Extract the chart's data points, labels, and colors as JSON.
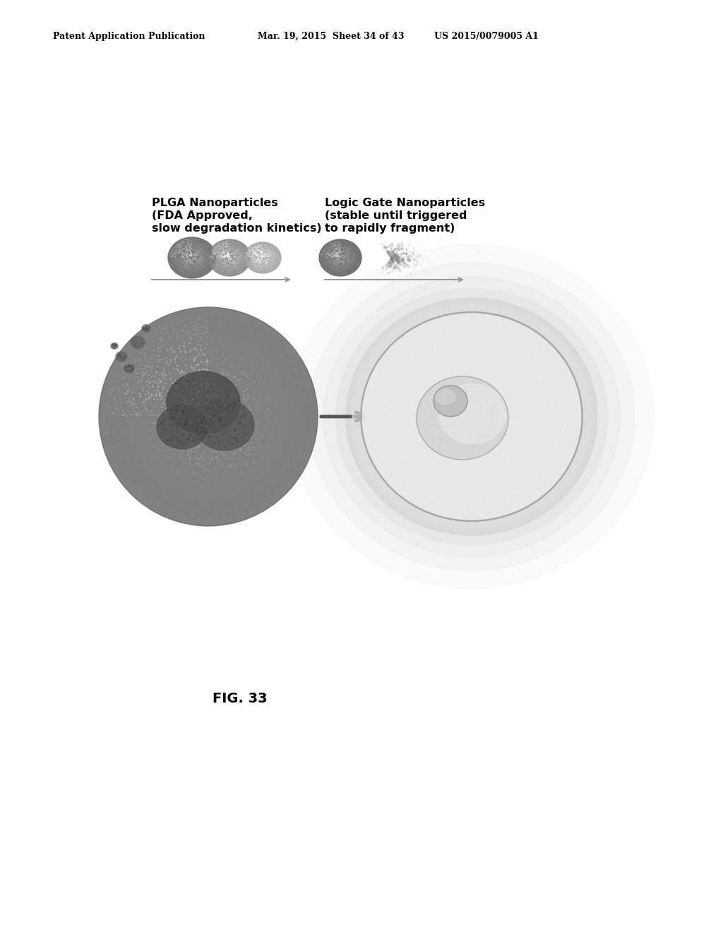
{
  "bg_color": "#ffffff",
  "header_left": "Patent Application Publication",
  "header_mid": "Mar. 19, 2015  Sheet 34 of 43",
  "header_right": "US 2015/0079005 A1",
  "label_left_title": "PLGA Nanoparticles",
  "label_left_sub1": "(FDA Approved,",
  "label_left_sub2": "slow degradation kinetics)",
  "label_right_title": "Logic Gate Nanoparticles",
  "label_right_sub1": "(stable until triggered",
  "label_right_sub2": "to rapidly fragment)",
  "fig_label": "FIG. 33"
}
